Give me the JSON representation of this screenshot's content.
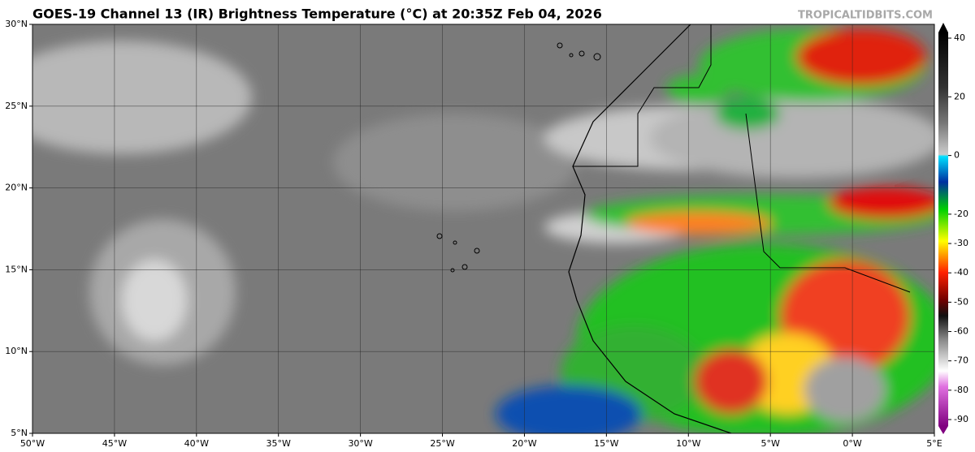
{
  "map": {
    "title": "GOES-19 Channel 13 (IR) Brightness Temperature (°C) at 20:35Z Feb 04, 2026",
    "watermark": "TROPICALTIDBITS.COM",
    "lonlim": [
      -50,
      5
    ],
    "latlim": [
      5,
      30
    ],
    "lon_ticks": [
      {
        "value": -50,
        "label": "50°W"
      },
      {
        "value": -45,
        "label": "45°W"
      },
      {
        "value": -40,
        "label": "40°W"
      },
      {
        "value": -35,
        "label": "35°W"
      },
      {
        "value": -30,
        "label": "30°W"
      },
      {
        "value": -25,
        "label": "25°W"
      },
      {
        "value": -20,
        "label": "20°W"
      },
      {
        "value": -15,
        "label": "15°W"
      },
      {
        "value": -10,
        "label": "10°W"
      },
      {
        "value": -5,
        "label": "5°W"
      },
      {
        "value": 0,
        "label": "0°W"
      },
      {
        "value": 5,
        "label": "5°E"
      }
    ],
    "lat_ticks": [
      {
        "value": 5,
        "label": "5°N"
      },
      {
        "value": 10,
        "label": "10°N"
      },
      {
        "value": 15,
        "label": "15°N"
      },
      {
        "value": 20,
        "label": "20°N"
      },
      {
        "value": 25,
        "label": "25°N"
      },
      {
        "value": 30,
        "label": "30°N"
      }
    ],
    "colorbar": {
      "lim": [
        -90,
        40
      ],
      "ticks": [
        40,
        20,
        0,
        -20,
        -30,
        -40,
        -50,
        -60,
        -70,
        -80,
        -90
      ]
    }
  }
}
